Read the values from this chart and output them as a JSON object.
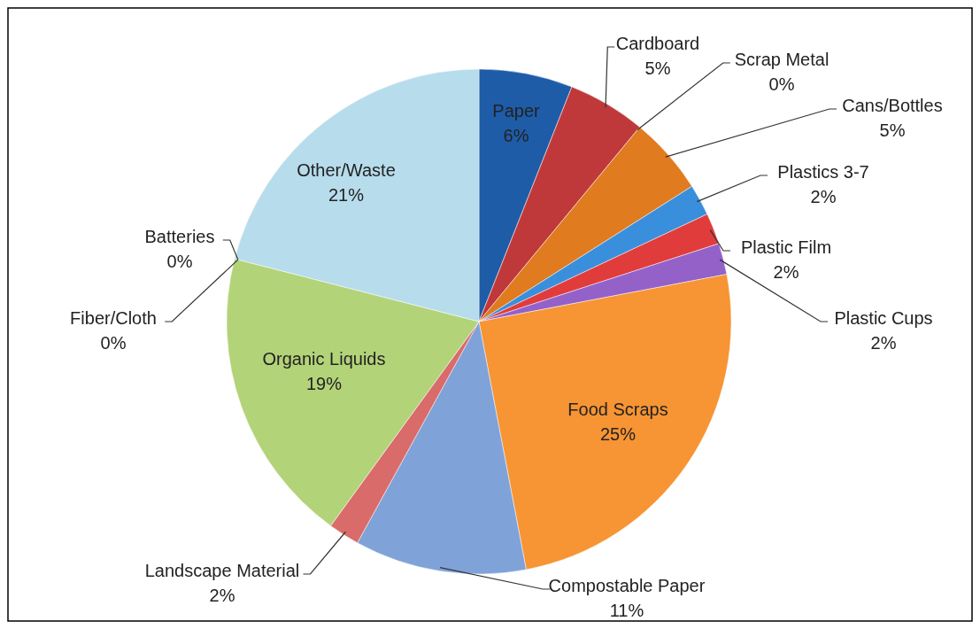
{
  "chart_data": {
    "type": "pie",
    "categories": [
      "Paper",
      "Cardboard",
      "Scrap Metal",
      "Cans/Bottles",
      "Plastics 3-7",
      "Plastic Film",
      "Plastic Cups",
      "Food Scraps",
      "Compostable Paper",
      "Landscape Material",
      "Organic Liquids",
      "Fiber/Cloth",
      "Batteries",
      "Other/Waste"
    ],
    "values": [
      6,
      5,
      0,
      5,
      2,
      2,
      2,
      25,
      11,
      2,
      19,
      0,
      0,
      21
    ],
    "value_labels": [
      "6%",
      "5%",
      "0%",
      "5%",
      "2%",
      "2%",
      "2%",
      "25%",
      "11%",
      "2%",
      "19%",
      "0%",
      "0%",
      "21%"
    ],
    "colors": [
      "#1f5ca8",
      "#c0393a",
      null,
      "#e07b1f",
      "#3a8fdc",
      "#e03c3c",
      "#9461c9",
      "#f79433",
      "#7fa2d8",
      "#d96b6b",
      "#b3d378",
      null,
      null,
      "#b7dcec"
    ]
  }
}
